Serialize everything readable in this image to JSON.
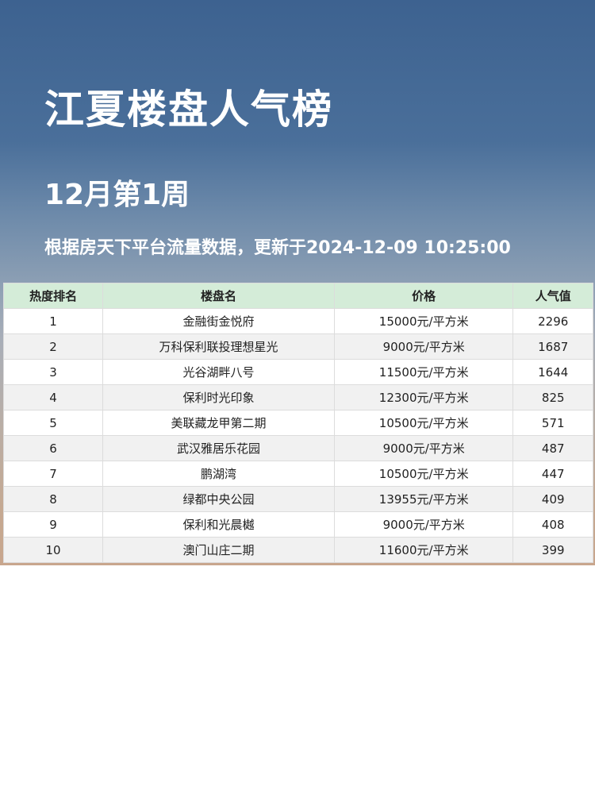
{
  "title": "江夏楼盘人气榜",
  "week": "12月第1周",
  "subtitle": "根据房天下平台流量数据，更新于2024-12-09 10:25:00",
  "table": {
    "headers": [
      "热度排名",
      "楼盘名",
      "价格",
      "人气值"
    ],
    "rows": [
      [
        "1",
        "金融街金悦府",
        "15000元/平方米",
        "2296"
      ],
      [
        "2",
        "万科保利联投理想星光",
        "9000元/平方米",
        "1687"
      ],
      [
        "3",
        "光谷湖畔八号",
        "11500元/平方米",
        "1644"
      ],
      [
        "4",
        "保利时光印象",
        "12300元/平方米",
        "825"
      ],
      [
        "5",
        "美联藏龙甲第二期",
        "10500元/平方米",
        "571"
      ],
      [
        "6",
        "武汉雅居乐花园",
        "9000元/平方米",
        "487"
      ],
      [
        "7",
        "鹏湖湾",
        "10500元/平方米",
        "447"
      ],
      [
        "8",
        "绿都中央公园",
        "13955元/平方米",
        "409"
      ],
      [
        "9",
        "保利和光晨樾",
        "9000元/平方米",
        "408"
      ],
      [
        "10",
        "澳门山庄二期",
        "11600元/平方米",
        "399"
      ]
    ]
  }
}
